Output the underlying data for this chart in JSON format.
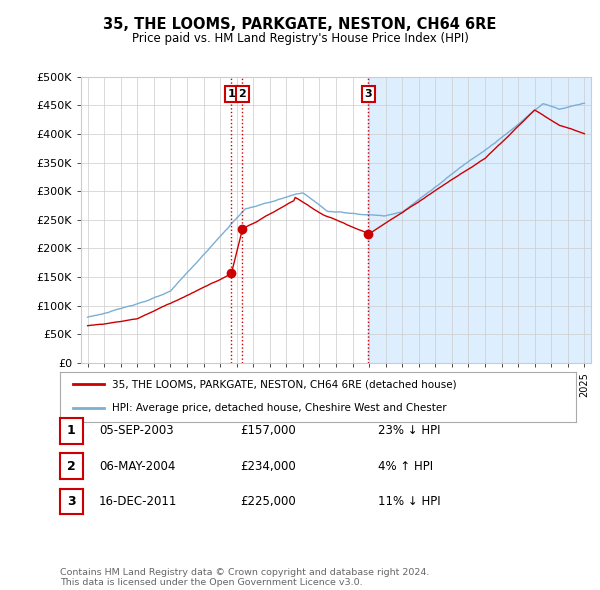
{
  "title": "35, THE LOOMS, PARKGATE, NESTON, CH64 6RE",
  "subtitle": "Price paid vs. HM Land Registry's House Price Index (HPI)",
  "ylabel_ticks": [
    "£0",
    "£50K",
    "£100K",
    "£150K",
    "£200K",
    "£250K",
    "£300K",
    "£350K",
    "£400K",
    "£450K",
    "£500K"
  ],
  "ytick_values": [
    0,
    50000,
    100000,
    150000,
    200000,
    250000,
    300000,
    350000,
    400000,
    450000,
    500000
  ],
  "ylim": [
    0,
    500000
  ],
  "xlim_start": 1994.6,
  "xlim_end": 2025.4,
  "hpi_color": "#7bafd4",
  "hpi_fill_color": "#ddeeff",
  "price_color": "#cc0000",
  "sale_points": [
    {
      "date_num": 2003.68,
      "price": 157000,
      "label": "1"
    },
    {
      "date_num": 2004.35,
      "price": 234000,
      "label": "2"
    },
    {
      "date_num": 2011.96,
      "price": 225000,
      "label": "3"
    }
  ],
  "vline_color": "#cc0000",
  "label_box_color": "#ffffff",
  "label_box_edge": "#cc0000",
  "legend_house_label": "35, THE LOOMS, PARKGATE, NESTON, CH64 6RE (detached house)",
  "legend_hpi_label": "HPI: Average price, detached house, Cheshire West and Chester",
  "table_rows": [
    {
      "num": "1",
      "date": "05-SEP-2003",
      "price": "£157,000",
      "pct": "23%",
      "arrow": "↓",
      "rel": "HPI"
    },
    {
      "num": "2",
      "date": "06-MAY-2004",
      "price": "£234,000",
      "pct": "4%",
      "arrow": "↑",
      "rel": "HPI"
    },
    {
      "num": "3",
      "date": "16-DEC-2011",
      "price": "£225,000",
      "pct": "11%",
      "arrow": "↓",
      "rel": "HPI"
    }
  ],
  "footer": "Contains HM Land Registry data © Crown copyright and database right 2024.\nThis data is licensed under the Open Government Licence v3.0.",
  "bg_color": "#ffffff",
  "grid_color": "#cccccc"
}
